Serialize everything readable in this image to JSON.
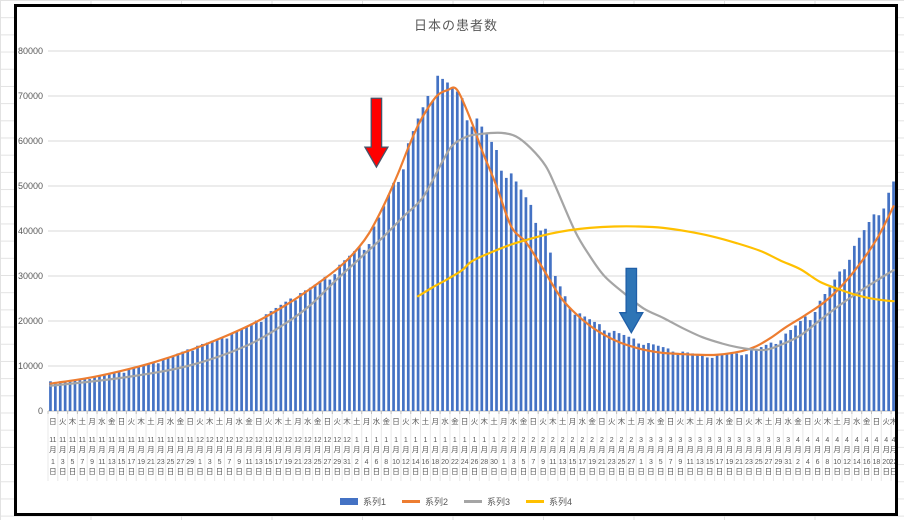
{
  "title": "日本の患者数",
  "legend": [
    {
      "label": "系列1",
      "swatch": "bar",
      "color": "#4472C4"
    },
    {
      "label": "系列2",
      "swatch": "line",
      "color": "#ED7D31"
    },
    {
      "label": "系列3",
      "swatch": "line",
      "color": "#A5A5A5"
    },
    {
      "label": "系列4",
      "swatch": "line",
      "color": "#FFC000"
    }
  ],
  "chart_data": {
    "type": "combo-bar-line",
    "title": "日本の患者数",
    "y_axis": {
      "min": 0,
      "max": 80000,
      "step": 10000,
      "tick_labels": [
        "0",
        "10000",
        "20000",
        "30000",
        "40000",
        "50000",
        "60000",
        "70000",
        "80000"
      ]
    },
    "x_axis": {
      "label_interval_days": 2,
      "weekdays": "日火木土月水金日火木土月水金日火木土月水金日火木土月水金日火木土月水金日火木土月水金日火木土月水金日火木土月水金日火木土月水金日火木土月水金日火木土月水金日火木土月水金日火木",
      "month_suffix": "月",
      "day_suffix": "日",
      "dates": [
        [
          11,
          1
        ],
        [
          11,
          3
        ],
        [
          11,
          5
        ],
        [
          11,
          7
        ],
        [
          11,
          9
        ],
        [
          11,
          11
        ],
        [
          11,
          13
        ],
        [
          11,
          15
        ],
        [
          11,
          17
        ],
        [
          11,
          19
        ],
        [
          11,
          21
        ],
        [
          11,
          23
        ],
        [
          11,
          25
        ],
        [
          11,
          27
        ],
        [
          11,
          29
        ],
        [
          12,
          1
        ],
        [
          12,
          3
        ],
        [
          12,
          5
        ],
        [
          12,
          7
        ],
        [
          12,
          9
        ],
        [
          12,
          11
        ],
        [
          12,
          13
        ],
        [
          12,
          15
        ],
        [
          12,
          17
        ],
        [
          12,
          19
        ],
        [
          12,
          21
        ],
        [
          12,
          23
        ],
        [
          12,
          25
        ],
        [
          12,
          27
        ],
        [
          12,
          29
        ],
        [
          12,
          31
        ],
        [
          1,
          2
        ],
        [
          1,
          4
        ],
        [
          1,
          6
        ],
        [
          1,
          8
        ],
        [
          1,
          10
        ],
        [
          1,
          12
        ],
        [
          1,
          14
        ],
        [
          1,
          16
        ],
        [
          1,
          18
        ],
        [
          1,
          20
        ],
        [
          1,
          22
        ],
        [
          1,
          24
        ],
        [
          1,
          26
        ],
        [
          1,
          28
        ],
        [
          1,
          30
        ],
        [
          2,
          1
        ],
        [
          2,
          3
        ],
        [
          2,
          5
        ],
        [
          2,
          7
        ],
        [
          2,
          9
        ],
        [
          2,
          11
        ],
        [
          2,
          13
        ],
        [
          2,
          15
        ],
        [
          2,
          17
        ],
        [
          2,
          19
        ],
        [
          2,
          21
        ],
        [
          2,
          23
        ],
        [
          2,
          25
        ],
        [
          2,
          27
        ],
        [
          3,
          1
        ],
        [
          3,
          3
        ],
        [
          3,
          5
        ],
        [
          3,
          7
        ],
        [
          3,
          9
        ],
        [
          3,
          11
        ],
        [
          3,
          13
        ],
        [
          3,
          15
        ],
        [
          3,
          17
        ],
        [
          3,
          19
        ],
        [
          3,
          21
        ],
        [
          3,
          23
        ],
        [
          3,
          25
        ],
        [
          3,
          27
        ],
        [
          3,
          29
        ],
        [
          3,
          31
        ],
        [
          4,
          2
        ],
        [
          4,
          4
        ],
        [
          4,
          6
        ],
        [
          4,
          8
        ],
        [
          4,
          10
        ],
        [
          4,
          12
        ],
        [
          4,
          14
        ],
        [
          4,
          16
        ],
        [
          4,
          18
        ],
        [
          4,
          20
        ],
        [
          4,
          22
        ]
      ]
    },
    "bar_series": {
      "name": "系列1",
      "color": "#4472C4",
      "values": [
        6600,
        6400,
        6600,
        6500,
        6800,
        6900,
        7000,
        7200,
        7100,
        7600,
        7800,
        8000,
        8200,
        8400,
        8700,
        8500,
        9200,
        9500,
        9800,
        10100,
        10400,
        10800,
        10600,
        11500,
        11900,
        12300,
        12800,
        13200,
        13700,
        13400,
        14500,
        14900,
        15200,
        15600,
        16000,
        16400,
        16100,
        17200,
        17600,
        18100,
        18700,
        19400,
        20100,
        19800,
        21500,
        22200,
        22900,
        23600,
        24300,
        25000,
        24600,
        26200,
        26800,
        27400,
        28100,
        28900,
        29800,
        29200,
        30400,
        32500,
        33500,
        34500,
        35500,
        36500,
        35800,
        37100,
        41000,
        43000,
        45500,
        48000,
        50700,
        50900,
        53700,
        59500,
        62200,
        65000,
        67500,
        70000,
        69000,
        74500,
        73800,
        73000,
        72000,
        71000,
        69500,
        64600,
        63200,
        65000,
        63200,
        61500,
        59800,
        58000,
        53400,
        51800,
        52800,
        51000,
        49200,
        47500,
        45800,
        41800,
        40100,
        40500,
        35200,
        30000,
        27700,
        25500,
        22800,
        21400,
        21700,
        21000,
        20400,
        19800,
        19300,
        17900,
        17400,
        17800,
        17300,
        16900,
        16500,
        16100,
        15000,
        14700,
        15100,
        14800,
        14500,
        14200,
        13900,
        13200,
        12900,
        13200,
        13000,
        12800,
        12600,
        12500,
        11900,
        11800,
        12400,
        12500,
        12600,
        12700,
        12800,
        12400,
        12600,
        13500,
        13800,
        14200,
        14700,
        15200,
        14900,
        15700,
        17200,
        18000,
        19000,
        20000,
        21000,
        20200,
        22000,
        24500,
        26000,
        27500,
        29200,
        31000,
        31500,
        33600,
        36700,
        38500,
        40200,
        42000,
        43700,
        43500,
        45000,
        48500,
        51000
      ]
    },
    "line_series": [
      {
        "name": "系列2",
        "color": "#ED7D31",
        "points": [
          [
            0,
            6100
          ],
          [
            7,
            7200
          ],
          [
            14,
            8800
          ],
          [
            21,
            10800
          ],
          [
            28,
            13300
          ],
          [
            35,
            16300
          ],
          [
            42,
            19800
          ],
          [
            49,
            24200
          ],
          [
            56,
            29500
          ],
          [
            60,
            33000
          ],
          [
            63,
            36500
          ],
          [
            65,
            39500
          ],
          [
            67,
            43500
          ],
          [
            69,
            48000
          ],
          [
            71,
            53000
          ],
          [
            73,
            58500
          ],
          [
            75,
            63500
          ],
          [
            77,
            67300
          ],
          [
            79,
            70200
          ],
          [
            81,
            71300
          ],
          [
            83,
            71300
          ],
          [
            86,
            64000
          ],
          [
            88,
            58000
          ],
          [
            91,
            50000
          ],
          [
            94,
            41000
          ],
          [
            97,
            37500
          ],
          [
            100,
            32500
          ],
          [
            104,
            25400
          ],
          [
            107,
            21800
          ],
          [
            110,
            19000
          ],
          [
            113,
            16900
          ],
          [
            116,
            15300
          ],
          [
            119,
            14200
          ],
          [
            122,
            13400
          ],
          [
            125,
            12900
          ],
          [
            128,
            12700
          ],
          [
            132,
            12500
          ],
          [
            136,
            12500
          ],
          [
            141,
            13300
          ],
          [
            144,
            14400
          ],
          [
            147,
            16300
          ],
          [
            150,
            18600
          ],
          [
            154,
            21300
          ],
          [
            158,
            24300
          ],
          [
            162,
            28500
          ],
          [
            166,
            34000
          ],
          [
            169,
            39000
          ],
          [
            172,
            45500
          ]
        ]
      },
      {
        "name": "系列3",
        "color": "#A5A5A5",
        "points": [
          [
            0,
            5600
          ],
          [
            14,
            7300
          ],
          [
            28,
            10000
          ],
          [
            40,
            14500
          ],
          [
            48,
            19500
          ],
          [
            53,
            23500
          ],
          [
            58,
            28800
          ],
          [
            63,
            33800
          ],
          [
            68,
            38800
          ],
          [
            72,
            43200
          ],
          [
            76,
            47500
          ],
          [
            80,
            55500
          ],
          [
            82,
            59000
          ],
          [
            85,
            61000
          ],
          [
            88,
            61600
          ],
          [
            92,
            61800
          ],
          [
            95,
            61000
          ],
          [
            98,
            58400
          ],
          [
            101,
            54500
          ],
          [
            103,
            50000
          ],
          [
            107,
            40000
          ],
          [
            110,
            34500
          ],
          [
            113,
            30000
          ],
          [
            117,
            26200
          ],
          [
            121,
            22800
          ],
          [
            125,
            20700
          ],
          [
            129,
            18400
          ],
          [
            133,
            16400
          ],
          [
            137,
            15000
          ],
          [
            140,
            14200
          ],
          [
            143,
            13700
          ],
          [
            146,
            13600
          ],
          [
            149,
            14700
          ],
          [
            153,
            16800
          ],
          [
            157,
            20200
          ],
          [
            161,
            23500
          ],
          [
            165,
            26500
          ],
          [
            169,
            29300
          ],
          [
            172,
            31300
          ]
        ]
      },
      {
        "name": "系列4",
        "color": "#FFC000",
        "points": [
          [
            75,
            25500
          ],
          [
            78,
            27500
          ],
          [
            81,
            29300
          ],
          [
            84,
            31300
          ],
          [
            86,
            33300
          ],
          [
            90,
            35300
          ],
          [
            94,
            37000
          ],
          [
            98,
            38300
          ],
          [
            102,
            39400
          ],
          [
            106,
            40200
          ],
          [
            110,
            40700
          ],
          [
            115,
            41000
          ],
          [
            120,
            41000
          ],
          [
            125,
            40700
          ],
          [
            130,
            39900
          ],
          [
            135,
            38800
          ],
          [
            140,
            37300
          ],
          [
            145,
            35500
          ],
          [
            149,
            33400
          ],
          [
            153,
            31500
          ],
          [
            157,
            28700
          ],
          [
            161,
            27000
          ],
          [
            164,
            25900
          ],
          [
            167,
            25100
          ],
          [
            170,
            24600
          ],
          [
            172,
            24400
          ]
        ]
      }
    ],
    "annotations": [
      {
        "name": "red-down-arrow",
        "day": 66.5,
        "value_top": 69500,
        "value_tip": 54200,
        "fill": "#FF0000",
        "stroke": "#44546A"
      },
      {
        "name": "blue-down-arrow",
        "day": 118.5,
        "value_top": 31700,
        "value_tip": 17400,
        "fill": "#2E75B6",
        "stroke": "#1F5FA8"
      }
    ]
  }
}
